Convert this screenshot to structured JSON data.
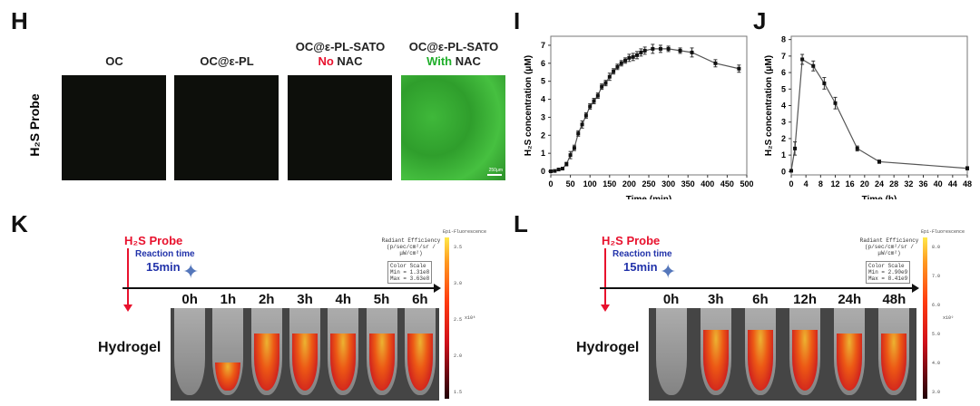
{
  "panels": {
    "H": "H",
    "I": "I",
    "J": "J",
    "K": "K",
    "L": "L"
  },
  "H": {
    "row_label": "H₂S Probe",
    "columns": [
      {
        "line1": "OC",
        "line2a": "",
        "line2b": ""
      },
      {
        "line1": "OC@ε-PL",
        "line2a": "",
        "line2b": ""
      },
      {
        "line1": "OC@ε-PL-SATO",
        "line2a": "No",
        "line2b": " NAC"
      },
      {
        "line1": "OC@ε-PL-SATO",
        "line2a": "With",
        "line2b": " NAC"
      }
    ],
    "scale_bar": "250μm",
    "colors": {
      "no": "#e8112d",
      "with": "#1fae2a"
    }
  },
  "chart_data": [
    {
      "type": "line",
      "panel": "I",
      "xlabel": "Time (min)",
      "ylabel": "H₂S concentration (μM)",
      "xlim": [
        0,
        500
      ],
      "ylim": [
        -0.2,
        7.5
      ],
      "xticks": [
        0,
        50,
        100,
        150,
        200,
        250,
        300,
        350,
        400,
        450,
        500
      ],
      "yticks": [
        0,
        1,
        2,
        3,
        4,
        5,
        6,
        7
      ],
      "x": [
        0,
        10,
        20,
        30,
        40,
        50,
        60,
        70,
        80,
        90,
        100,
        110,
        120,
        130,
        140,
        150,
        160,
        170,
        180,
        190,
        200,
        210,
        220,
        230,
        240,
        260,
        280,
        300,
        330,
        360,
        420,
        480
      ],
      "y": [
        0,
        0.02,
        0.1,
        0.15,
        0.4,
        0.9,
        1.3,
        2.1,
        2.6,
        3.1,
        3.6,
        3.9,
        4.2,
        4.7,
        4.9,
        5.25,
        5.55,
        5.8,
        6.0,
        6.15,
        6.3,
        6.35,
        6.45,
        6.6,
        6.7,
        6.8,
        6.8,
        6.8,
        6.7,
        6.6,
        6.0,
        5.7
      ],
      "err": [
        0.05,
        0.05,
        0.05,
        0.05,
        0.1,
        0.2,
        0.15,
        0.15,
        0.2,
        0.15,
        0.15,
        0.15,
        0.15,
        0.15,
        0.15,
        0.2,
        0.15,
        0.15,
        0.15,
        0.15,
        0.2,
        0.2,
        0.2,
        0.2,
        0.2,
        0.25,
        0.2,
        0.15,
        0.15,
        0.25,
        0.2,
        0.2
      ]
    },
    {
      "type": "line",
      "panel": "J",
      "xlabel": "Time (h)",
      "ylabel": "H₂S concentration (μM)",
      "xlim": [
        0,
        48
      ],
      "ylim": [
        -0.2,
        8.2
      ],
      "xticks": [
        0,
        4,
        8,
        12,
        16,
        20,
        24,
        28,
        32,
        36,
        40,
        44,
        48
      ],
      "yticks": [
        0,
        1,
        2,
        3,
        4,
        5,
        6,
        7,
        8
      ],
      "x": [
        0,
        1,
        3,
        6,
        9,
        12,
        18,
        24,
        48
      ],
      "y": [
        0.05,
        1.4,
        6.8,
        6.4,
        5.35,
        4.15,
        1.4,
        0.6,
        0.2
      ],
      "err": [
        0.05,
        0.4,
        0.3,
        0.3,
        0.35,
        0.35,
        0.15,
        0.1,
        0.1
      ]
    }
  ],
  "K": {
    "probe": "H₂S Probe",
    "reaction": "Reaction time",
    "duration": "15min",
    "times": [
      "0h",
      "1h",
      "2h",
      "3h",
      "4h",
      "5h",
      "6h"
    ],
    "fill": [
      0,
      0.35,
      0.7,
      0.7,
      0.7,
      0.7,
      0.7
    ],
    "sample": "Hydrogel",
    "legend_title": "Radiant Efficiency",
    "legend_unit": "(p/sec/cm²/sr / μW/cm²)",
    "scale": [
      "Color Scale",
      "Min = 1.31e8",
      "Max = 3.63e8"
    ],
    "cb_title": "Epi-Fluorescence",
    "cb_ticks": [
      "3.5",
      "3.0",
      "2.5",
      "2.0",
      "1.5"
    ],
    "cb_exp": "x10⁸"
  },
  "L": {
    "probe": "H₂S Probe",
    "reaction": "Reaction time",
    "duration": "15min",
    "times": [
      "0h",
      "3h",
      "6h",
      "12h",
      "24h",
      "48h"
    ],
    "fill": [
      0,
      0.75,
      0.75,
      0.75,
      0.7,
      0.7
    ],
    "sample": "Hydrogel",
    "legend_title": "Radiant Efficiency",
    "legend_unit": "(p/sec/cm²/sr / μW/cm²)",
    "scale": [
      "Color Scale",
      "Min = 2.90e9",
      "Max = 8.41e9"
    ],
    "cb_title": "Epi-Fluorescence",
    "cb_ticks": [
      "8.0",
      "7.0",
      "6.0",
      "5.0",
      "4.0",
      "3.0"
    ],
    "cb_exp": "x10⁹"
  }
}
